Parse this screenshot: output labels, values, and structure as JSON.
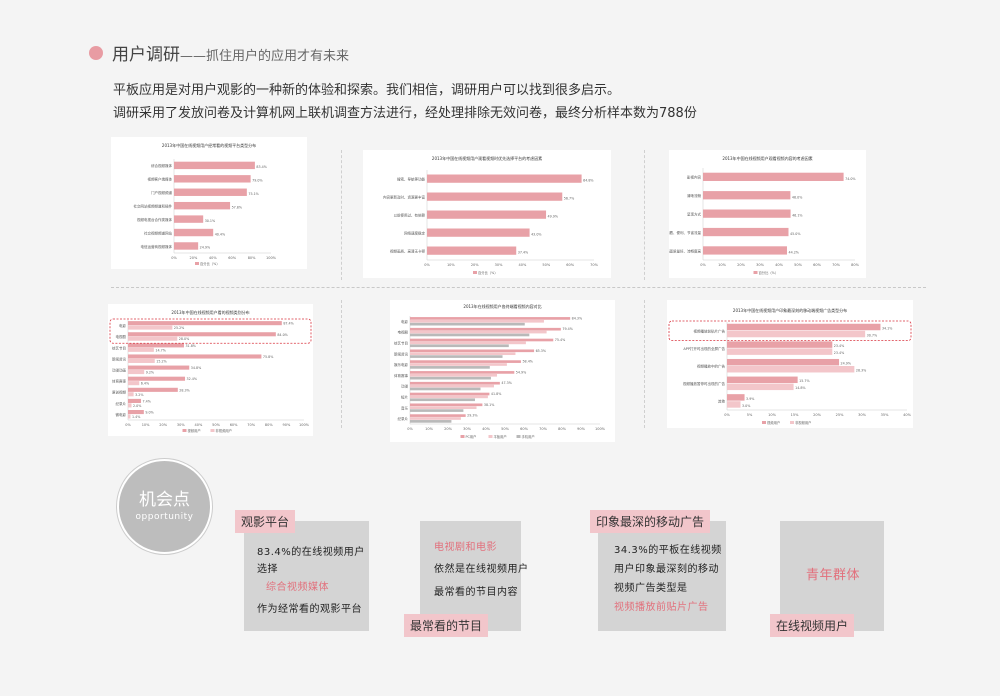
{
  "header": {
    "title": "用户调研",
    "subtitle": "——抓住用户的应用才有未来"
  },
  "intro": {
    "line1": "平板应用是对用户观影的一种新的体验和探索。我们相信，调研用户可以找到很多启示。",
    "line2": "调研采用了发放问卷及计算机网上联机调查方法进行，经处理排除无效问卷，最终分析样本数为788份"
  },
  "colors": {
    "pink": "#e8a1a7",
    "light_pink": "#f3c6ca",
    "grey": "#b9b9b9",
    "accent": "#e2707c",
    "card": "#d4d4d4"
  },
  "chart_data": [
    {
      "type": "bar",
      "title": "2013年中国在线视频用户经常看的视频平台类型分布",
      "categories": [
        "综合视频媒体",
        "视频客户端媒体",
        "门户视频频道",
        "社交网站视频频道和插件",
        "视频电视台合作类媒体",
        "社交视频频道网站",
        "电信运营商视频媒体"
      ],
      "values": [
        83.4,
        79.0,
        75.1,
        57.8,
        30.1,
        40.4,
        24.9
      ],
      "labels": [
        "83.4%",
        "79.0%",
        "75.1%",
        "57.8%",
        "30.1%",
        "40.4%",
        "24.9%"
      ],
      "xticks": [
        "0%",
        "20%",
        "40%",
        "60%",
        "80%",
        "100%"
      ],
      "legend": [
        "百分比（%）"
      ]
    },
    {
      "type": "bar",
      "title": "2013年中国在线视频用户观看视频时优先选择平台的考虑因素",
      "categories": [
        "搜索、导航等功能",
        "内容更新及时、资源更丰富",
        "以前使用过、有依赖",
        "网络速度稳定",
        "视频画质、高清无卡顿"
      ],
      "values": [
        64.8,
        56.7,
        49.9,
        43.0,
        37.4
      ],
      "labels": [
        "64.8%",
        "56.7%",
        "49.9%",
        "43.0%",
        "37.4%"
      ],
      "xticks": [
        "0%",
        "10%",
        "20%",
        "30%",
        "40%",
        "50%",
        "60%",
        "70%"
      ],
      "legend": [
        "百分比（%）"
      ]
    },
    {
      "type": "bar",
      "title": "2013年中国在线视频用户观看视频内容的考虑因素",
      "categories": [
        "影视内容",
        "清晰流畅",
        "呈现方式",
        "手机观看、便利、节省流量",
        "画面质量好、流畅度高"
      ],
      "values": [
        74.0,
        46.0,
        46.1,
        45.0,
        44.2
      ],
      "labels": [
        "74.0%",
        "46.0%",
        "46.1%",
        "45.0%",
        "44.2%"
      ],
      "xticks": [
        "0%",
        "10%",
        "20%",
        "30%",
        "40%",
        "50%",
        "60%",
        "70%",
        "80%"
      ],
      "legend": [
        "百分比（%）"
      ]
    },
    {
      "type": "bar",
      "title": "2013年中国在线视频用户看的视频类别分布",
      "categories": [
        "电影",
        "电视剧",
        "综艺节目",
        "新闻资讯",
        "动漫动画",
        "体育赛事",
        "原创视频",
        "纪录片",
        "微电影"
      ],
      "series": [
        {
          "name": "视频用户",
          "values": [
            87.4,
            84.0,
            31.8,
            75.8,
            34.8,
            32.4,
            28.3,
            7.4,
            9.0
          ],
          "labels": [
            "87.4%",
            "84.0%",
            "31.8%",
            "75.8%",
            "34.8%",
            "32.4%",
            "28.3%",
            "7.4%",
            "9.0%"
          ]
        },
        {
          "name": "非视频用户",
          "values": [
            25.2,
            28.0,
            14.7,
            15.2,
            9.2,
            6.4,
            3.2,
            2.0,
            1.4
          ],
          "labels": [
            "25.2%",
            "28.0%",
            "14.7%",
            "15.2%",
            "9.2%",
            "6.4%",
            "3.2%",
            "2.0%",
            "1.4%"
          ]
        }
      ],
      "xticks": [
        "0%",
        "10%",
        "20%",
        "30%",
        "40%",
        "50%",
        "60%",
        "70%",
        "80%",
        "90%",
        "100%"
      ],
      "legend": [
        "视频用户",
        "非视频用户"
      ]
    },
    {
      "type": "bar",
      "title": "2013年在线视频用户各终端看视频内容对比",
      "categories": [
        "电影",
        "电视剧",
        "综艺节目",
        "新闻资讯",
        "娱乐电影",
        "体育赛事",
        "动漫",
        "短片",
        "音乐",
        "纪录片"
      ],
      "series": [
        {
          "name": "PC用户",
          "values": [
            84.3,
            79.4,
            75.4,
            65.3,
            58.4,
            54.9,
            47.3,
            41.8,
            38.1,
            29.3
          ]
        },
        {
          "name": "平板用户",
          "values": [
            70.5,
            71.9,
            61.0,
            55.5,
            51.0,
            45.8,
            44.2,
            41.0,
            35.0,
            26.8
          ]
        },
        {
          "name": "手机用户",
          "values": [
            60.4,
            62.8,
            52.0,
            48.7,
            42.0,
            42.6,
            37.1,
            34.2,
            28.1,
            21.8
          ]
        }
      ],
      "labels": [
        "84.3%",
        "79.4%",
        "75.4%",
        "65.3%",
        "58.4%",
        "54.9%",
        "47.3%",
        "41.8%",
        "38.1%",
        "29.3%"
      ],
      "xticks": [
        "0%",
        "10%",
        "20%",
        "30%",
        "40%",
        "50%",
        "60%",
        "70%",
        "80%",
        "90%",
        "100%"
      ],
      "legend": [
        "PC用户",
        "平板用户",
        "手机用户"
      ]
    },
    {
      "type": "bar",
      "title": "2013年中国在线视频用户印象最深刻的移动端视频广告类型分布",
      "categories": [
        "视频播放前贴片广告",
        "APP打开时出现的全屏广告",
        "视频播放中的广告",
        "视频播放暂停时出现的广告",
        "其他"
      ],
      "series": [
        {
          "name": "视频用户",
          "values": [
            34.1,
            23.4,
            24.9,
            15.7,
            3.9
          ],
          "labels": [
            "34.1%",
            "23.4%",
            "24.9%",
            "15.7%",
            "3.9%"
          ]
        },
        {
          "name": "非视频用户",
          "values": [
            30.7,
            23.4,
            28.3,
            14.8,
            3.0
          ],
          "labels": [
            "30.7%",
            "23.4%",
            "28.3%",
            "14.8%",
            "3.0%"
          ]
        }
      ],
      "xticks": [
        "0%",
        "5%",
        "10%",
        "15%",
        "20%",
        "25%",
        "30%",
        "35%",
        "40%"
      ],
      "legend": [
        "视频用户",
        "非视频用户"
      ]
    }
  ],
  "opportunity": {
    "title": "机会点",
    "subtitle": "opportunity"
  },
  "cards": [
    {
      "tag": "观影平台",
      "lines": [
        "83.4%的在线视频用户",
        "选择",
        "综合视频媒体",
        "作为经常看的观影平台"
      ]
    },
    {
      "tag": "最常看的节目",
      "lines": [
        "电视剧和电影",
        "依然是在线视频用户",
        "最常看的节目内容"
      ]
    },
    {
      "tag": "印象最深的移动广告",
      "lines": [
        "34.3%的平板在线视频",
        "用户印象最深刻的移动",
        "视频广告类型是",
        "视频播放前贴片广告"
      ]
    },
    {
      "tag": "在线视频用户",
      "lines": [
        "青年群体"
      ]
    }
  ]
}
